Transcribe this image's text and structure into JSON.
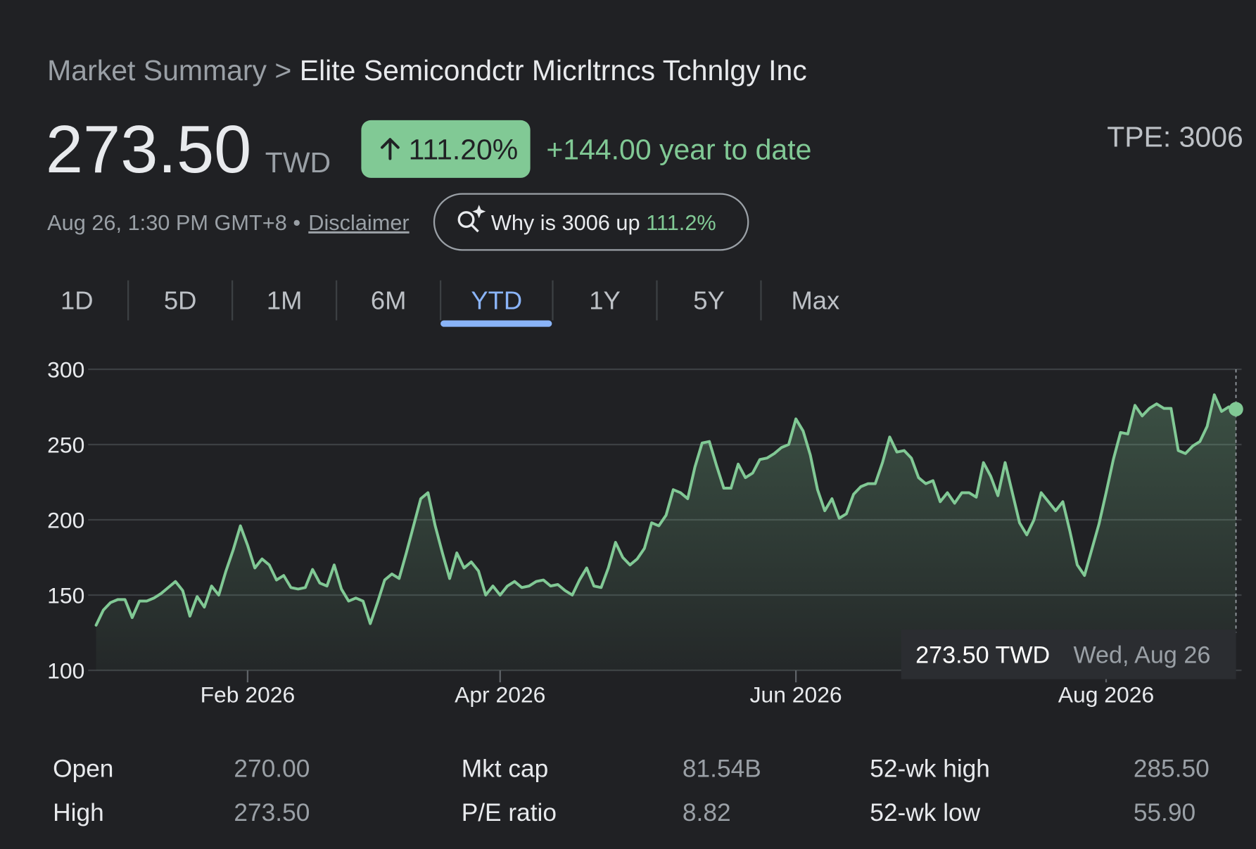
{
  "breadcrumb": {
    "root": "Market Summary",
    "separator": ">",
    "name": "Elite Semicondctr Micrltrncs Tchnlgy Inc"
  },
  "price": "273.50",
  "currency": "TWD",
  "change_pct": "111.20%",
  "change_ytd": "+144.00 year to date",
  "ticker": "TPE: 3006",
  "timestamp": "Aug 26, 1:30 PM GMT+8 •",
  "disclaimer": "Disclaimer",
  "why": {
    "text": "Why is 3006 up",
    "pct": "111.2%"
  },
  "ranges": [
    "1D",
    "5D",
    "1M",
    "6M",
    "YTD",
    "1Y",
    "5Y",
    "Max"
  ],
  "selected_range": 4,
  "chart_data": {
    "type": "line",
    "color": "#81c995",
    "grid": true,
    "values": [
      130,
      140,
      145,
      147,
      147,
      135,
      146,
      146,
      148,
      151,
      155,
      159,
      153,
      136,
      149,
      142,
      156,
      150,
      166,
      180,
      196,
      183,
      168,
      174,
      170,
      160,
      163,
      155,
      154,
      155,
      167,
      158,
      156,
      170,
      154,
      146,
      148,
      146,
      131,
      145,
      160,
      164,
      161,
      178,
      196,
      214,
      218,
      196,
      178,
      161,
      178,
      168,
      172,
      166,
      150,
      156,
      150,
      156,
      159,
      155,
      156,
      159,
      160,
      156,
      157,
      153,
      150,
      160,
      168,
      156,
      155,
      168,
      185,
      175,
      170,
      174,
      181,
      198,
      196,
      203,
      220,
      218,
      214,
      235,
      251,
      252,
      236,
      221,
      221,
      237,
      228,
      231,
      240,
      241,
      244,
      248,
      250,
      267,
      259,
      243,
      220,
      206,
      214,
      201,
      204,
      217,
      222,
      224,
      224,
      238,
      255,
      245,
      246,
      241,
      228,
      224,
      226,
      212,
      218,
      211,
      218,
      218,
      215,
      238,
      229,
      216,
      238,
      218,
      198,
      190,
      200,
      218,
      212,
      206,
      212,
      192,
      170,
      163,
      180,
      197,
      218,
      240,
      258,
      257,
      276,
      269,
      274,
      277,
      274,
      274,
      246,
      244,
      249,
      252,
      262,
      283,
      272,
      275,
      273.5
    ],
    "xlim": [
      0,
      158
    ],
    "xticks": [
      {
        "value": 21,
        "label": "Feb 2026"
      },
      {
        "value": 56,
        "label": "Apr 2026"
      },
      {
        "value": 97,
        "label": "Jun 2026"
      },
      {
        "value": 140,
        "label": "Aug 2026"
      }
    ],
    "ylim": [
      100,
      300
    ],
    "yticks": [
      100,
      150,
      200,
      250,
      300
    ],
    "tooltip": {
      "value": "273.50 TWD",
      "date": "Wed, Aug 26"
    }
  },
  "stats": [
    [
      [
        "Open",
        "270.00"
      ],
      [
        "Mkt cap",
        "81.54B"
      ],
      [
        "52-wk high",
        "285.50"
      ]
    ],
    [
      [
        "High",
        "273.50"
      ],
      [
        "P/E ratio",
        "8.82"
      ],
      [
        "52-wk low",
        "55.90"
      ]
    ]
  ]
}
